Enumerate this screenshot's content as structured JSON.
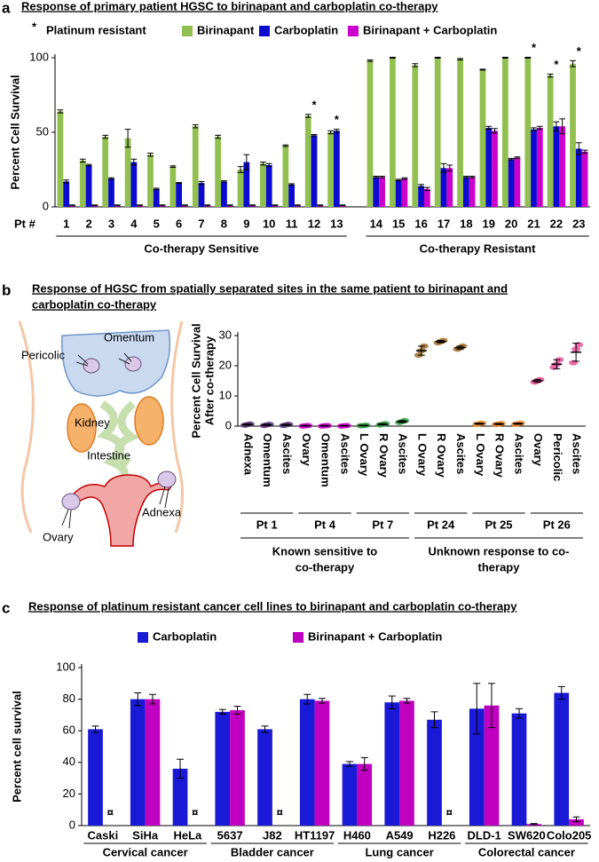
{
  "diagram": {
    "labels": [
      "Pericolic",
      "Omentum",
      "Kidney",
      "Intestine",
      "Adnexa",
      "Ovary"
    ]
  },
  "chart_data": [
    {
      "type": "bar",
      "panel": "a",
      "title": [
        "Response of primary patient HGSC to birinapant and carboplatin co-therapy"
      ],
      "y_label": "Percent Cell Survival",
      "x_label": "Pt #",
      "marker_symbol": "*",
      "marker_legend": "Platinum resistant",
      "marked_categories": [
        "12",
        "13",
        "21",
        "22",
        "23"
      ],
      "groups": [
        {
          "label": "Co-therapy Sensitive",
          "categories": [
            "1",
            "2",
            "3",
            "4",
            "5",
            "6",
            "7",
            "8",
            "9",
            "10",
            "11",
            "12",
            "13"
          ]
        },
        {
          "label": "Co-therapy Resistant",
          "categories": [
            "14",
            "15",
            "16",
            "17",
            "18",
            "19",
            "20",
            "21",
            "22",
            "23"
          ]
        }
      ],
      "series": [
        {
          "name": "Birinapant",
          "color": "#92c050",
          "values": [
            64,
            31,
            47,
            46,
            35,
            27,
            54,
            47,
            25,
            29,
            41,
            61,
            50,
            98,
            100,
            95,
            100,
            99,
            92,
            100,
            100,
            88,
            96
          ],
          "errors": [
            1,
            1,
            1,
            6,
            1,
            0.5,
            1,
            1,
            2,
            1,
            0.5,
            1,
            1,
            0.5,
            0.3,
            1,
            0.3,
            0.5,
            0.3,
            0.3,
            0.3,
            1,
            2
          ]
        },
        {
          "name": "Carboplatin",
          "color": "#0a0ad0",
          "values": [
            17,
            28,
            19,
            30,
            12,
            16,
            16,
            17,
            30,
            28,
            15,
            48,
            51,
            20,
            18,
            14,
            26,
            20,
            53,
            32,
            52,
            54,
            39
          ],
          "errors": [
            1,
            0.5,
            0.5,
            2,
            0.5,
            0.3,
            1,
            0.5,
            5,
            1,
            0.5,
            0.5,
            1,
            0.5,
            0.5,
            1,
            3,
            0.5,
            1,
            0.5,
            1,
            3,
            4
          ]
        },
        {
          "name": "Birinapant + Carboplatin",
          "color": "#cc00cc",
          "values": [
            1,
            1,
            1,
            1,
            1,
            1,
            1,
            1,
            1,
            1,
            1,
            1,
            1,
            20,
            19,
            12,
            26,
            20,
            51,
            33,
            53,
            54,
            37
          ],
          "errors": [
            0.3,
            0.3,
            0.3,
            0.3,
            0.3,
            0.3,
            0.3,
            0.3,
            0.3,
            0.3,
            0.3,
            0.3,
            0.3,
            0.5,
            0.5,
            1,
            2,
            0.5,
            1.5,
            0.5,
            1,
            5,
            1
          ]
        }
      ],
      "ylim": [
        0,
        100
      ],
      "yticks": [
        0,
        50,
        100
      ]
    },
    {
      "type": "dot",
      "panel": "b",
      "title": [
        "Response of HGSC from spatially separated sites in the same patient to birinapant and",
        "carboplatin co-therapy"
      ],
      "y_label": [
        "Percent Cell Survival",
        "After co-therapy"
      ],
      "supergroups": [
        {
          "label": [
            "Known sensitive to",
            "co-therapy"
          ],
          "groups": [
            {
              "label": "Pt 1",
              "color": "#5b3a7a",
              "categories": [
                "Adnexa",
                "Omentum",
                "Ascites"
              ],
              "values": [
                0.5,
                0.4,
                0.4
              ],
              "errors": [
                0.2,
                0.2,
                0.2
              ],
              "points": [
                [
                  0.3,
                  0.5,
                  0.7
                ],
                [
                  0.2,
                  0.4,
                  0.6
                ],
                [
                  0.2,
                  0.4,
                  0.6
                ]
              ]
            },
            {
              "label": "Pt 4",
              "color": "#cc00cc",
              "categories": [
                "Ovary",
                "Omentum",
                "Ascites"
              ],
              "values": [
                0.1,
                0.1,
                0.1
              ],
              "errors": [
                0.1,
                0.1,
                0.1
              ],
              "points": [
                [
                  0,
                  0.1,
                  0.2
                ],
                [
                  0,
                  0.1,
                  0.2
                ],
                [
                  0,
                  0.1,
                  0.2
                ]
              ]
            },
            {
              "label": "Pt 7",
              "color": "#2e9e3e",
              "categories": [
                "L Ovary",
                "R Ovary",
                "Ascites"
              ],
              "values": [
                0.2,
                0.6,
                1.5
              ],
              "errors": [
                0.1,
                0.2,
                0.3
              ],
              "points": [
                [
                  0.1,
                  0.2,
                  0.3
                ],
                [
                  0.4,
                  0.6,
                  0.8
                ],
                [
                  1.2,
                  1.5,
                  1.8
                ]
              ]
            }
          ]
        },
        {
          "label": [
            "Unknown response to co-",
            "therapy"
          ],
          "groups": [
            {
              "label": "Pt 24",
              "color": "#a0702a",
              "categories": [
                "L Ovary",
                "R Ovary",
                "Ascites"
              ],
              "values": [
                25,
                28,
                26
              ],
              "errors": [
                1.5,
                0.4,
                0.5
              ],
              "points": [
                [
                  23.5,
                  25,
                  26.5
                ],
                [
                  27.6,
                  28,
                  28.4
                ],
                [
                  25.5,
                  26,
                  26.5
                ]
              ]
            },
            {
              "label": "Pt 25",
              "color": "#f08c30",
              "categories": [
                "L Ovary",
                "R Ovary",
                "Ascites"
              ],
              "values": [
                0.8,
                0.7,
                0.8
              ],
              "errors": [
                0.2,
                0.2,
                0.2
              ],
              "points": [
                [
                  0.6,
                  0.8,
                  1
                ],
                [
                  0.5,
                  0.7,
                  0.9
                ],
                [
                  0.6,
                  0.8,
                  1
                ]
              ]
            },
            {
              "label": "Pt 26",
              "color": "#e8509a",
              "categories": [
                "Ovary",
                "Pericolic",
                "Ascites"
              ],
              "values": [
                15,
                20.5,
                24.5
              ],
              "errors": [
                0.5,
                1.5,
                3
              ],
              "points": [
                [
                  14.6,
                  15,
                  15.4
                ],
                [
                  19.5,
                  20.5,
                  22
                ],
                [
                  21,
                  25.5,
                  27
                ]
              ]
            }
          ]
        }
      ],
      "ylim": [
        0,
        30
      ],
      "yticks": [
        0,
        10,
        20,
        30
      ]
    },
    {
      "type": "bar",
      "panel": "c",
      "title": [
        "Response of platinum resistant cancer cell lines to birinapant and carboplatin co-therapy"
      ],
      "y_label": "Percent cell survival",
      "missing_symbol": "¤",
      "groups": [
        {
          "label": "Cervical cancer",
          "categories": [
            "Caski",
            "SiHa",
            "HeLa"
          ]
        },
        {
          "label": "Bladder cancer",
          "categories": [
            "5637",
            "J82",
            "HT1197"
          ]
        },
        {
          "label": "Lung cancer",
          "categories": [
            "H460",
            "A549",
            "H226"
          ]
        },
        {
          "label": "Colorectal cancer",
          "categories": [
            "DLD-1",
            "SW620",
            "Colo205"
          ]
        }
      ],
      "series": [
        {
          "name": "Carboplatin",
          "color": "#1a1ad6",
          "values": [
            61,
            80,
            36,
            72,
            61,
            80,
            39,
            78,
            67,
            74,
            71,
            84
          ],
          "errors": [
            2,
            4,
            6,
            1.5,
            2,
            3,
            1.5,
            4,
            5,
            16,
            3,
            4
          ]
        },
        {
          "name": "Birinapant + Carboplatin",
          "color": "#c000c0",
          "values": [
            null,
            80,
            null,
            73,
            null,
            79,
            39,
            79,
            null,
            76,
            1,
            4
          ],
          "errors": [
            null,
            3,
            null,
            2.5,
            null,
            1.5,
            4,
            1.5,
            null,
            14,
            0.3,
            1.5
          ]
        }
      ],
      "ylim": [
        0,
        100
      ],
      "yticks": [
        0,
        20,
        40,
        60,
        80,
        100
      ]
    }
  ]
}
